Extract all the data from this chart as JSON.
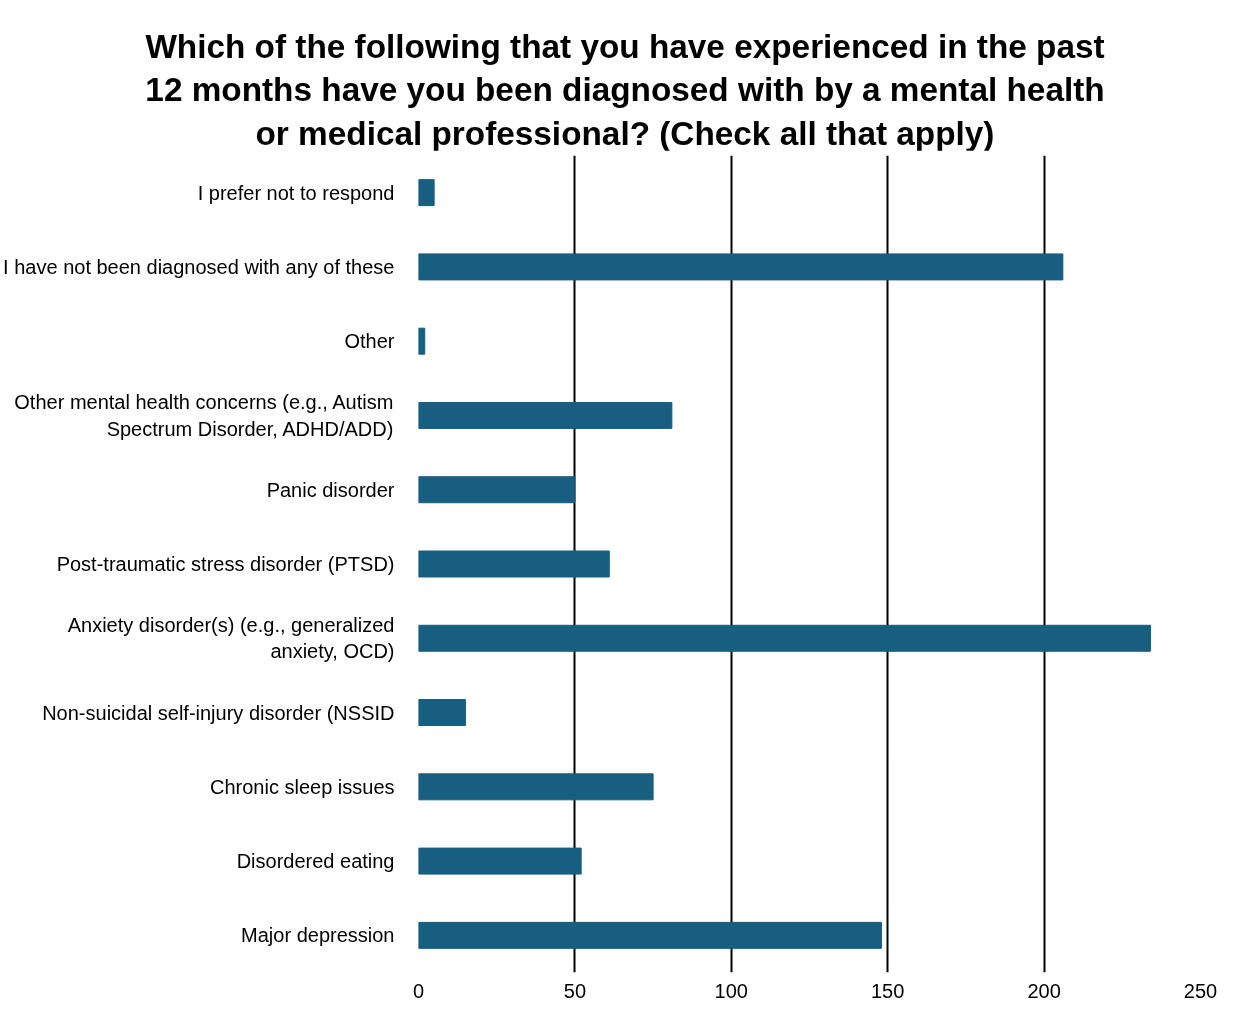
{
  "chart_data": {
    "type": "bar",
    "orientation": "horizontal",
    "title": "Which of the following that you have experienced in the past 12 months have you been diagnosed with by a mental health or medical professional? (Check all that apply)",
    "categories": [
      "I prefer not to respond",
      "I have not been diagnosed with any of these",
      "Other",
      "Other mental health concerns (e.g., Autism Spectrum Disorder, ADHD/ADD)",
      "Panic disorder",
      "Post-traumatic stress disorder (PTSD)",
      "Anxiety disorder(s) (e.g., generalized anxiety, OCD)",
      "Non-suicidal self-injury disorder (NSSID",
      "Chronic sleep issues",
      "Disordered eating",
      "Major depression"
    ],
    "values": [
      5,
      206,
      2,
      81,
      50,
      61,
      234,
      15,
      75,
      52,
      148
    ],
    "color": "#175e80",
    "xlim": [
      0,
      250
    ],
    "xticks": [
      0,
      50,
      100,
      150,
      200,
      250
    ],
    "grid": "x"
  }
}
